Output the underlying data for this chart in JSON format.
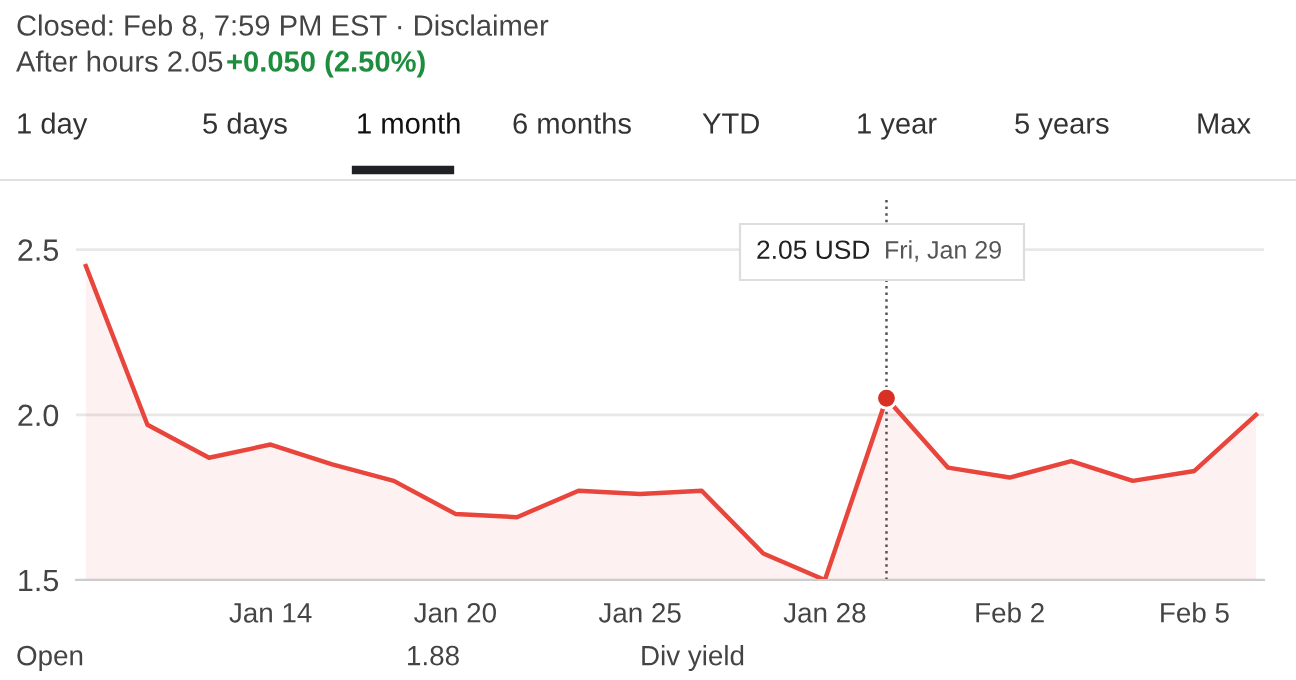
{
  "chart_data": {
    "type": "area",
    "categories": [
      null,
      null,
      null,
      "Jan 14",
      null,
      null,
      "Jan 20",
      null,
      null,
      "Jan 25",
      null,
      null,
      "Jan 28",
      null,
      null,
      "Feb 2",
      null,
      null,
      "Feb 5",
      null
    ],
    "series": [
      {
        "color": "#e8453c",
        "values": [
          2.45,
          1.97,
          1.87,
          1.91,
          1.85,
          1.8,
          1.7,
          1.69,
          1.77,
          1.76,
          1.77,
          1.58,
          1.5,
          2.05,
          1.84,
          1.81,
          1.86,
          1.8,
          1.83,
          2.0
        ]
      },
      {
        "type": "scatter",
        "color": "#d93025",
        "values": [
          null,
          null,
          null,
          null,
          null,
          null,
          null,
          null,
          null,
          null,
          null,
          null,
          null,
          2.05,
          null,
          null,
          null,
          null,
          null,
          null
        ]
      }
    ],
    "ylim": [
      1.5,
      2.65
    ],
    "yticks": [
      {
        "value": 1.5,
        "label": "1.5"
      },
      {
        "value": 2.0,
        "label": "2.0"
      },
      {
        "value": 2.5,
        "label": "2.5"
      }
    ],
    "grid": "y",
    "annotations": [
      "Closed: Feb 8, 7:59 PM EST · Disclaimer",
      "After hours 2.05",
      "+0.050 (2.50%)",
      "1 day",
      "5 days",
      "1 month",
      "6 months",
      "YTD",
      "1 year",
      "5 years",
      "Max",
      "2.05 USD",
      "Fri, Jan 29",
      "Open",
      "1.88",
      "Div yield"
    ]
  }
}
